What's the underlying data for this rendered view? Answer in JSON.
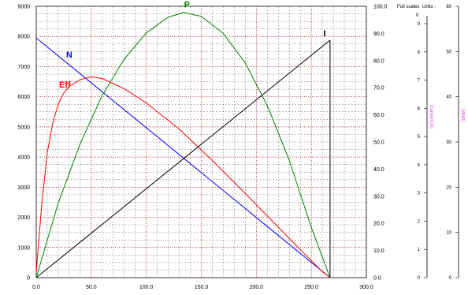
{
  "chart_data": {
    "type": "line",
    "x": {
      "ticks": [
        "0.0",
        "50.0",
        "100.0",
        "150.0",
        "200.0",
        "250.0",
        "300.0"
      ],
      "range": [
        0,
        300
      ]
    },
    "left_axis": {
      "ticks": [
        "0",
        "1000",
        "2000",
        "3000",
        "4000",
        "5000",
        "6000",
        "7000",
        "8000",
        "9000"
      ],
      "range": [
        0,
        9000
      ]
    },
    "right_axis": {
      "ticks": [
        "0.0",
        "10.0",
        "20.0",
        "30.0",
        "40.0",
        "50.0",
        "60.0",
        "70.0",
        "80.0",
        "90.0",
        "100.0"
      ],
      "range": [
        0,
        100
      ]
    },
    "full_scales_label": "Full scales",
    "units_label": "Units :",
    "current_scale": {
      "ticks": [
        "0",
        "1",
        "2",
        "3",
        "4",
        "5",
        "6",
        "7",
        "8",
        "9"
      ],
      "top_label": "0",
      "unit_label": "Current (A)"
    },
    "power_scale": {
      "ticks": [
        "0",
        "10",
        "20",
        "30",
        "40",
        "50",
        "60"
      ],
      "unit_label": "(Watt)"
    },
    "series": [
      {
        "name": "N",
        "axis": "left",
        "color": "#0000ff",
        "x": [
          0,
          267
        ],
        "y": [
          7950,
          0
        ]
      },
      {
        "name": "I",
        "axis": "right",
        "color": "#000000",
        "x": [
          0,
          267,
          267
        ],
        "y": [
          0,
          87.5,
          0
        ]
      },
      {
        "name": "P",
        "axis": "right",
        "color": "#008000",
        "x": [
          0,
          20,
          40,
          60,
          80,
          100,
          120,
          134,
          150,
          170,
          190,
          210,
          230,
          250,
          267
        ],
        "y": [
          0,
          27.5,
          49.4,
          67.2,
          80.6,
          90.2,
          96.0,
          97.7,
          96.3,
          90.0,
          79.1,
          63.4,
          43.2,
          18.5,
          0
        ]
      },
      {
        "name": "Eff",
        "axis": "right",
        "color": "#ff0000",
        "x": [
          0,
          5,
          10,
          15,
          20,
          25,
          30,
          40,
          50,
          60,
          80,
          100,
          130,
          160,
          190,
          220,
          245,
          260,
          267
        ],
        "y": [
          2,
          27,
          46,
          57,
          64,
          68,
          70.5,
          73,
          74,
          73.4,
          69.6,
          64.4,
          54.7,
          43.2,
          31.0,
          18.6,
          8.3,
          2.2,
          0
        ]
      }
    ]
  },
  "colors": {
    "grid_major": "#a00000",
    "grid_minor": "#555555",
    "pink_label": "#e040e0"
  }
}
